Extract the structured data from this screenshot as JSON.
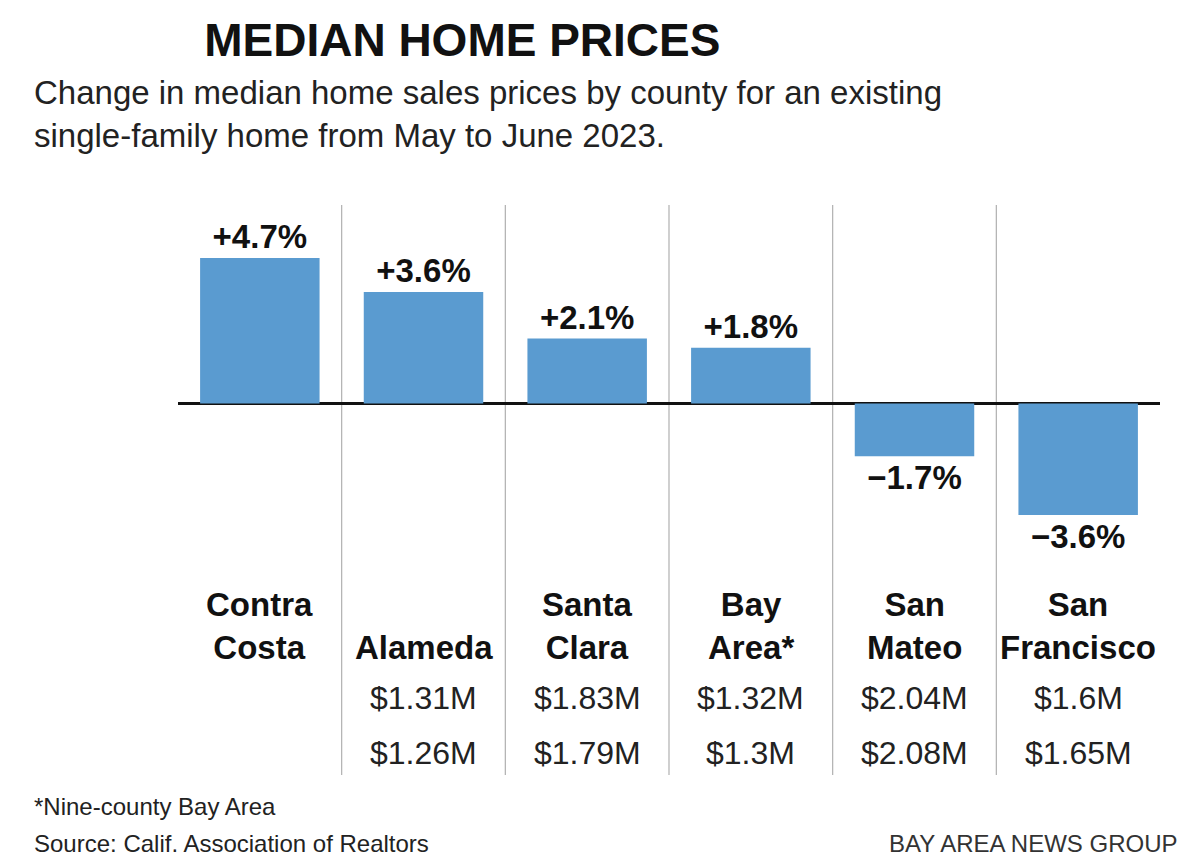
{
  "chart_data": {
    "type": "bar",
    "title": "MEDIAN HOME PRICES",
    "subtitle": "Change in median home sales prices by county for an existing single-family home from May to June 2023.",
    "categories": [
      "Contra Costa",
      "Alameda",
      "Santa Clara",
      "Bay Area*",
      "San Mateo",
      "San Francisco"
    ],
    "values": [
      4.7,
      3.6,
      2.1,
      1.8,
      -1.7,
      -3.6
    ],
    "value_labels": [
      "+4.7%",
      "+3.6%",
      "+2.1%",
      "+1.8%",
      "−1.7%",
      "−3.6%"
    ],
    "data_labels": true,
    "color": "#5a9bd0",
    "ylim": [
      -3.6,
      4.7
    ],
    "yticks": [],
    "grid": false,
    "price_labels_upper": [
      null,
      "$1.31M",
      "$1.83M",
      "$1.32M",
      "$2.04M",
      "$1.6M"
    ],
    "price_labels_lower": [
      null,
      "$1.26M",
      "$1.79M",
      "$1.3M",
      "$2.08M",
      "$1.65M"
    ],
    "footnote": "*Nine-county Bay Area",
    "source": "Source: Calif. Association of Realtors",
    "credit": "BAY AREA NEWS GROUP"
  }
}
